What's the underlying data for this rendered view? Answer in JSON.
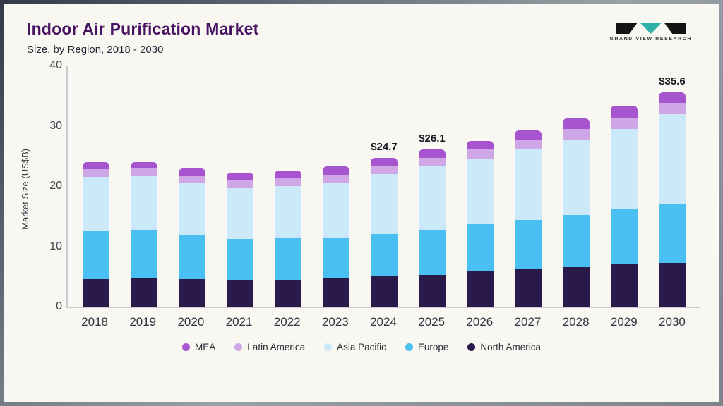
{
  "page": {
    "title": "Indoor Air Purification Market",
    "subtitle": "Size, by Region, 2018 - 2030",
    "logo_text": "GRAND VIEW RESEARCH"
  },
  "colors": {
    "title_accent": "#471261",
    "logo_teal": "#2fb3a9",
    "logo_black": "#141414",
    "axis_gray": "#c9cdd3",
    "background": "#f8f7f2"
  },
  "chart_data": {
    "type": "bar",
    "stacked": true,
    "title": "Indoor Air Purification Market Size, by Region, 2018 - 2030",
    "xlabel": "",
    "ylabel": "Market Size (US$B)",
    "ylim": [
      0,
      40
    ],
    "yticks": [
      0,
      10,
      20,
      30,
      40
    ],
    "grid": false,
    "legend_position": "bottom",
    "categories": [
      "2018",
      "2019",
      "2020",
      "2021",
      "2022",
      "2023",
      "2024",
      "2025",
      "2026",
      "2027",
      "2028",
      "2029",
      "2030"
    ],
    "series": [
      {
        "name": "North America",
        "color": "#2a1a4a",
        "values": [
          4.6,
          4.7,
          4.6,
          4.5,
          4.5,
          4.8,
          5.0,
          5.3,
          6.0,
          6.3,
          6.6,
          7.0,
          7.2
        ]
      },
      {
        "name": "Europe",
        "color": "#49c0f1",
        "values": [
          7.9,
          8.1,
          7.3,
          6.7,
          6.8,
          6.7,
          7.1,
          7.5,
          7.7,
          8.1,
          8.6,
          9.1,
          9.8
        ]
      },
      {
        "name": "Asia Pacific",
        "color": "#cbe9f9",
        "values": [
          9.0,
          9.0,
          8.6,
          8.5,
          8.7,
          9.1,
          9.9,
          10.5,
          10.9,
          11.7,
          12.5,
          13.4,
          14.9
        ]
      },
      {
        "name": "Latin America",
        "color": "#cfa6e6",
        "values": [
          1.3,
          1.1,
          1.1,
          1.3,
          1.3,
          1.3,
          1.4,
          1.4,
          1.5,
          1.6,
          1.8,
          1.9,
          1.9
        ]
      },
      {
        "name": "MEA",
        "color": "#a755ce",
        "values": [
          1.2,
          1.1,
          1.3,
          1.2,
          1.3,
          1.4,
          1.3,
          1.4,
          1.4,
          1.6,
          1.7,
          1.9,
          1.8
        ]
      }
    ],
    "totals": [
      24.0,
      24.0,
      22.9,
      22.2,
      22.6,
      23.3,
      24.7,
      26.1,
      27.5,
      29.3,
      31.2,
      33.3,
      35.6
    ],
    "annotations": {
      "2024": "$24.7",
      "2025": "$26.1",
      "2030": "$35.6"
    },
    "legend": [
      {
        "label": "MEA",
        "color": "#a755ce"
      },
      {
        "label": "Latin America",
        "color": "#cfa6e6"
      },
      {
        "label": "Asia Pacific",
        "color": "#cbe9f9"
      },
      {
        "label": "Europe",
        "color": "#49c0f1"
      },
      {
        "label": "North America",
        "color": "#2a1a4a"
      }
    ]
  }
}
